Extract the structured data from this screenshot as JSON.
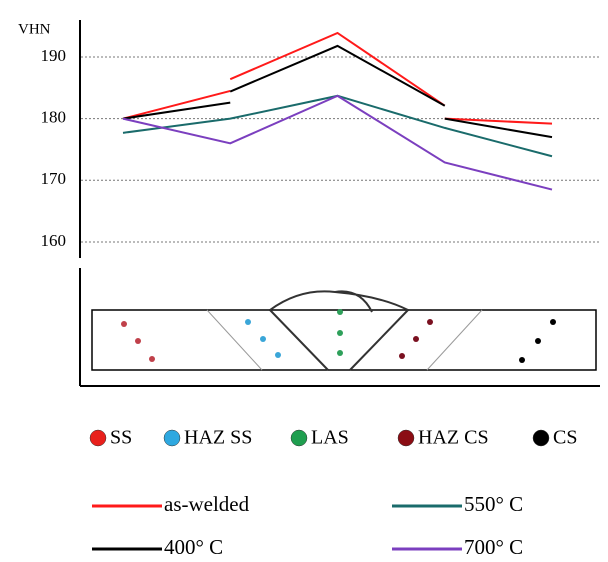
{
  "chart_data": {
    "type": "line",
    "y_label": "VHN",
    "ylim": [
      157.4,
      196
    ],
    "yticks": [
      160,
      170,
      180,
      190
    ],
    "xlim": [
      1,
      5
    ],
    "grid": true,
    "series": [
      {
        "name": "as-welded",
        "color": "#ff1a1a",
        "x": [
          1,
          2,
          null,
          2,
          3,
          4,
          null,
          4,
          5
        ],
        "values": [
          180,
          184.5,
          null,
          186.4,
          193.9,
          182.1,
          null,
          180,
          179.2
        ]
      },
      {
        "name": "400° C",
        "color": "#000000",
        "x": [
          1,
          2,
          null,
          2,
          3,
          4,
          null,
          4,
          5
        ],
        "values": [
          180,
          182.6,
          null,
          184.4,
          191.8,
          182.1,
          null,
          180,
          177
        ]
      },
      {
        "name": "550° C",
        "color": "#1a6b6b",
        "x": [
          1,
          2,
          3,
          4,
          5
        ],
        "values": [
          177.7,
          180,
          183.7,
          178.5,
          173.9
        ]
      },
      {
        "name": "700° C",
        "color": "#7b3fbf",
        "x": [
          1,
          2,
          3,
          4,
          5
        ],
        "values": [
          180,
          176,
          183.7,
          172.9,
          168.5
        ]
      }
    ]
  },
  "zone_legend": [
    {
      "name": "SS",
      "color": "#e8201c"
    },
    {
      "name": "HAZ SS",
      "color": "#2ea8e0"
    },
    {
      "name": "LAS",
      "color": "#1f9e4f"
    },
    {
      "name": "HAZ CS",
      "color": "#8b0d14"
    },
    {
      "name": "CS",
      "color": "#000000"
    }
  ]
}
